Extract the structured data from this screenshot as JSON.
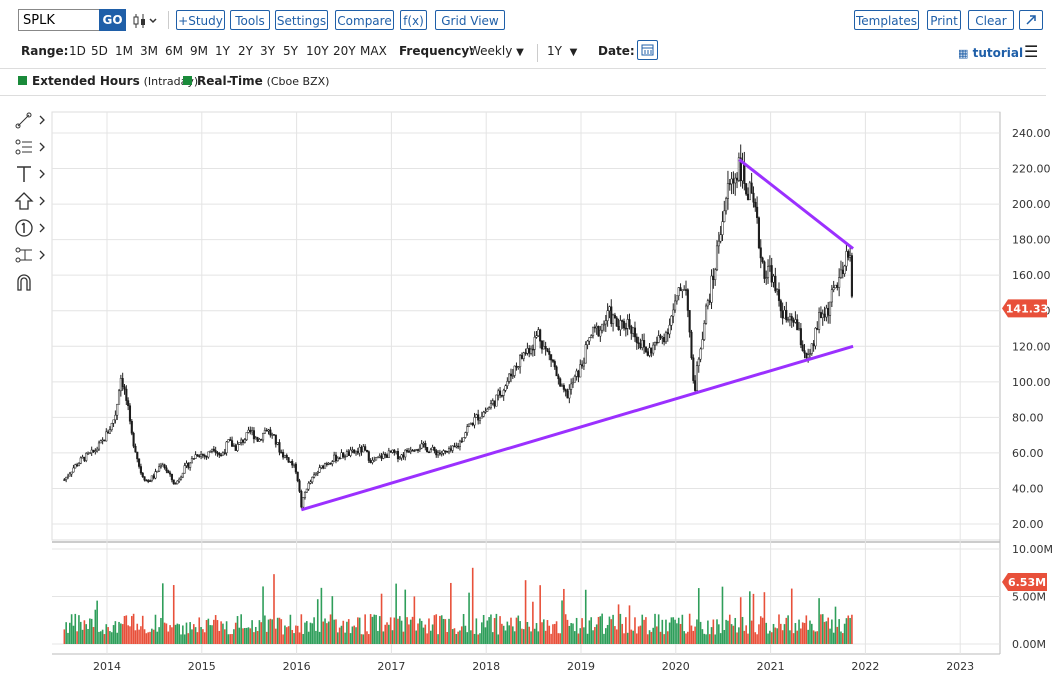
{
  "toolbar": {
    "symbol": "SPLK",
    "go": "GO",
    "chart_type_icon": "candlestick-icon",
    "study": "+Study",
    "tools": "Tools",
    "settings": "Settings",
    "compare": "Compare",
    "fx": "f(x)",
    "grid_view": "Grid View",
    "templates": "Templates",
    "print": "Print",
    "clear": "Clear",
    "expand_icon": "expand-arrow-icon"
  },
  "range_bar": {
    "range_label": "Range:",
    "ranges": [
      "1D",
      "5D",
      "1M",
      "3M",
      "6M",
      "9M",
      "1Y",
      "2Y",
      "3Y",
      "5Y",
      "10Y",
      "20Y",
      "MAX"
    ],
    "frequency_label": "Frequency:",
    "frequency": "Weekly",
    "period": "1Y",
    "date_label": "Date:",
    "tutorial": "tutorial"
  },
  "legend": {
    "extended": "Extended Hours",
    "extended_sub": "(Intraday)",
    "realtime": "Real-Time",
    "realtime_sub": "(Cboe BZX)",
    "color": "#1a8a3a"
  },
  "drawing_tools": [
    "line-tool-icon",
    "fib-tool-icon",
    "text-tool-icon",
    "arrow-tool-icon",
    "number-tool-icon",
    "measure-tool-icon",
    "magnet-icon"
  ],
  "chart_data": {
    "type": "candlestick",
    "symbol": "SPLK",
    "x_ticks": [
      "2014",
      "2015",
      "2016",
      "2017",
      "2018",
      "2019",
      "2020",
      "2021",
      "2022",
      "2023"
    ],
    "price_axis": [
      "240.00",
      "220.00",
      "200.00",
      "180.00",
      "160.00",
      "140.00",
      "120.00",
      "100.00",
      "80.00",
      "60.00",
      "40.00",
      "20.00"
    ],
    "price_ylim": [
      15,
      245
    ],
    "last_price": "141.33",
    "last_price_color": "#e8503a",
    "volume_axis": [
      "10.00M",
      "5.00M",
      "0.00M"
    ],
    "volume_ylim": [
      0,
      10
    ],
    "last_volume": "6.53M",
    "up_color": "#2e9e5a",
    "down_color": "#e8503a",
    "trendline_color": "#9b30ff",
    "trendlines": [
      {
        "name": "upper",
        "points": [
          [
            2020.67,
            225
          ],
          [
            2021.87,
            175
          ]
        ]
      },
      {
        "name": "lower",
        "points": [
          [
            2016.05,
            28
          ],
          [
            2021.87,
            120
          ]
        ]
      }
    ],
    "price_series": [
      [
        2013.55,
        45
      ],
      [
        2013.65,
        52
      ],
      [
        2013.75,
        57
      ],
      [
        2013.85,
        60
      ],
      [
        2013.95,
        66
      ],
      [
        2014.05,
        76
      ],
      [
        2014.1,
        84
      ],
      [
        2014.12,
        95
      ],
      [
        2014.15,
        104
      ],
      [
        2014.18,
        96
      ],
      [
        2014.22,
        85
      ],
      [
        2014.25,
        72
      ],
      [
        2014.3,
        62
      ],
      [
        2014.35,
        50
      ],
      [
        2014.42,
        44
      ],
      [
        2014.5,
        47
      ],
      [
        2014.58,
        55
      ],
      [
        2014.65,
        48
      ],
      [
        2014.72,
        42
      ],
      [
        2014.8,
        50
      ],
      [
        2014.88,
        55
      ],
      [
        2014.95,
        60
      ],
      [
        2015.05,
        58
      ],
      [
        2015.12,
        64
      ],
      [
        2015.2,
        58
      ],
      [
        2015.28,
        66
      ],
      [
        2015.36,
        63
      ],
      [
        2015.45,
        68
      ],
      [
        2015.52,
        72
      ],
      [
        2015.6,
        67
      ],
      [
        2015.68,
        74
      ],
      [
        2015.76,
        68
      ],
      [
        2015.84,
        60
      ],
      [
        2015.92,
        56
      ],
      [
        2016.0,
        50
      ],
      [
        2016.05,
        30
      ],
      [
        2016.1,
        40
      ],
      [
        2016.2,
        48
      ],
      [
        2016.3,
        54
      ],
      [
        2016.4,
        57
      ],
      [
        2016.5,
        59
      ],
      [
        2016.6,
        60
      ],
      [
        2016.7,
        62
      ],
      [
        2016.8,
        55
      ],
      [
        2016.9,
        58
      ],
      [
        2017.0,
        60
      ],
      [
        2017.1,
        58
      ],
      [
        2017.2,
        63
      ],
      [
        2017.3,
        64
      ],
      [
        2017.4,
        62
      ],
      [
        2017.5,
        60
      ],
      [
        2017.6,
        60
      ],
      [
        2017.7,
        64
      ],
      [
        2017.8,
        74
      ],
      [
        2017.9,
        80
      ],
      [
        2018.0,
        84
      ],
      [
        2018.1,
        90
      ],
      [
        2018.2,
        98
      ],
      [
        2018.3,
        108
      ],
      [
        2018.4,
        116
      ],
      [
        2018.5,
        122
      ],
      [
        2018.55,
        128
      ],
      [
        2018.62,
        118
      ],
      [
        2018.7,
        112
      ],
      [
        2018.78,
        96
      ],
      [
        2018.85,
        92
      ],
      [
        2018.92,
        100
      ],
      [
        2019.0,
        108
      ],
      [
        2019.1,
        126
      ],
      [
        2019.2,
        130
      ],
      [
        2019.3,
        138
      ],
      [
        2019.4,
        130
      ],
      [
        2019.5,
        134
      ],
      [
        2019.6,
        124
      ],
      [
        2019.7,
        116
      ],
      [
        2019.8,
        122
      ],
      [
        2019.9,
        128
      ],
      [
        2020.0,
        144
      ],
      [
        2020.08,
        156
      ],
      [
        2020.12,
        150
      ],
      [
        2020.17,
        106
      ],
      [
        2020.2,
        96
      ],
      [
        2020.25,
        118
      ],
      [
        2020.32,
        140
      ],
      [
        2020.4,
        160
      ],
      [
        2020.48,
        190
      ],
      [
        2020.56,
        210
      ],
      [
        2020.62,
        215
      ],
      [
        2020.67,
        224
      ],
      [
        2020.72,
        212
      ],
      [
        2020.78,
        205
      ],
      [
        2020.85,
        190
      ],
      [
        2020.9,
        170
      ],
      [
        2020.95,
        160
      ],
      [
        2021.0,
        165
      ],
      [
        2021.05,
        150
      ],
      [
        2021.1,
        144
      ],
      [
        2021.15,
        136
      ],
      [
        2021.2,
        132
      ],
      [
        2021.25,
        136
      ],
      [
        2021.3,
        126
      ],
      [
        2021.35,
        118
      ],
      [
        2021.4,
        112
      ],
      [
        2021.45,
        120
      ],
      [
        2021.5,
        134
      ],
      [
        2021.55,
        138
      ],
      [
        2021.6,
        140
      ],
      [
        2021.65,
        148
      ],
      [
        2021.7,
        156
      ],
      [
        2021.75,
        158
      ],
      [
        2021.8,
        168
      ],
      [
        2021.84,
        170
      ],
      [
        2021.87,
        141
      ]
    ]
  }
}
